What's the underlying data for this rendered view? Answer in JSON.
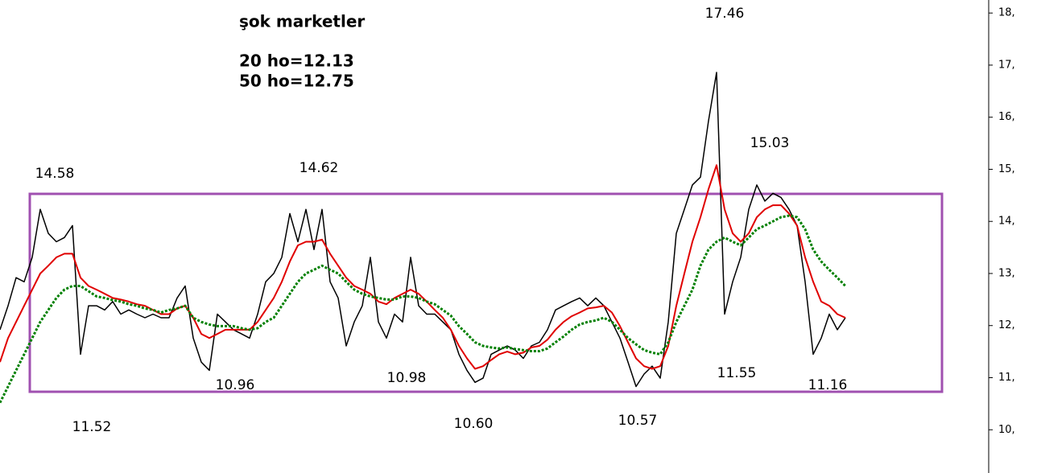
{
  "chart_data": {
    "type": "line",
    "title": "şok marketler",
    "subtitle": [
      "20 ho=12.13",
      "50 ho=12.75"
    ],
    "annotations": [
      "14.58",
      "11.52",
      "10.96",
      "14.62",
      "10.98",
      "10.60",
      "10.57",
      "17.46",
      "11.55",
      "15.03",
      "11.16"
    ],
    "ylim": [
      9.17,
      18.25
    ],
    "yticks": [
      {
        "value": 18,
        "label": "18,"
      },
      {
        "value": 17,
        "label": "17,"
      },
      {
        "value": 16,
        "label": "16,"
      },
      {
        "value": 15,
        "label": "15,"
      },
      {
        "value": 14,
        "label": "14,"
      },
      {
        "value": 13,
        "label": "13,"
      },
      {
        "value": 12,
        "label": "12,"
      },
      {
        "value": 11,
        "label": "11,"
      },
      {
        "value": 10,
        "label": "10,"
      }
    ],
    "grid": false,
    "series": [
      {
        "color": "#000000",
        "values": [
          11.92,
          12.38,
          12.92,
          12.84,
          13.31,
          14.23,
          13.77,
          13.61,
          13.69,
          13.92,
          11.45,
          12.38,
          12.38,
          12.3,
          12.46,
          12.22,
          12.3,
          12.22,
          12.15,
          12.22,
          12.15,
          12.15,
          12.53,
          12.76,
          11.76,
          11.3,
          11.14,
          12.22,
          12.07,
          11.92,
          11.84,
          11.76,
          12.22,
          12.84,
          13.0,
          13.31,
          14.15,
          13.61,
          14.23,
          13.46,
          14.23,
          12.84,
          12.53,
          11.61,
          12.07,
          12.38,
          13.31,
          12.07,
          11.76,
          12.22,
          12.07,
          13.31,
          12.38,
          12.22,
          12.22,
          12.07,
          11.92,
          11.45,
          11.14,
          10.91,
          10.99,
          11.45,
          11.53,
          11.61,
          11.53,
          11.37,
          11.61,
          11.68,
          11.92,
          12.3,
          12.38,
          12.46,
          12.53,
          12.38,
          12.53,
          12.38,
          12.07,
          11.76,
          11.3,
          10.83,
          11.07,
          11.22,
          10.99,
          12.07,
          13.77,
          14.23,
          14.7,
          14.85,
          15.93,
          16.86,
          12.22,
          12.84,
          13.31,
          14.23,
          14.7,
          14.39,
          14.54,
          14.46,
          14.23,
          13.92,
          12.84,
          11.45,
          11.76,
          12.22,
          11.92,
          12.15
        ]
      },
      {
        "color": "#e00000",
        "values": [
          11.3,
          11.76,
          12.07,
          12.38,
          12.69,
          13.0,
          13.15,
          13.31,
          13.38,
          13.38,
          12.92,
          12.76,
          12.69,
          12.61,
          12.53,
          12.5,
          12.46,
          12.41,
          12.38,
          12.3,
          12.22,
          12.22,
          12.33,
          12.38,
          12.15,
          11.84,
          11.76,
          11.84,
          11.92,
          11.92,
          11.92,
          11.92,
          12.07,
          12.3,
          12.53,
          12.84,
          13.23,
          13.54,
          13.61,
          13.61,
          13.65,
          13.38,
          13.15,
          12.92,
          12.76,
          12.69,
          12.61,
          12.46,
          12.41,
          12.53,
          12.61,
          12.69,
          12.61,
          12.46,
          12.3,
          12.15,
          11.92,
          11.61,
          11.37,
          11.17,
          11.22,
          11.34,
          11.45,
          11.5,
          11.45,
          11.48,
          11.58,
          11.61,
          11.73,
          11.92,
          12.07,
          12.18,
          12.25,
          12.33,
          12.35,
          12.38,
          12.25,
          11.99,
          11.68,
          11.37,
          11.22,
          11.17,
          11.22,
          11.61,
          12.38,
          13.0,
          13.61,
          14.08,
          14.62,
          15.08,
          14.23,
          13.77,
          13.61,
          13.77,
          14.08,
          14.23,
          14.31,
          14.31,
          14.15,
          13.92,
          13.31,
          12.84,
          12.46,
          12.38,
          12.22,
          12.15
        ]
      },
      {
        "color": "#008000",
        "values": [
          10.52,
          10.83,
          11.14,
          11.45,
          11.76,
          12.07,
          12.3,
          12.53,
          12.69,
          12.76,
          12.76,
          12.66,
          12.56,
          12.53,
          12.49,
          12.46,
          12.41,
          12.38,
          12.33,
          12.3,
          12.25,
          12.3,
          12.33,
          12.38,
          12.15,
          12.07,
          12.02,
          11.99,
          11.99,
          11.99,
          11.95,
          11.92,
          11.95,
          12.07,
          12.15,
          12.38,
          12.61,
          12.84,
          13.0,
          13.07,
          13.15,
          13.07,
          13.0,
          12.84,
          12.69,
          12.61,
          12.56,
          12.53,
          12.5,
          12.5,
          12.56,
          12.56,
          12.53,
          12.46,
          12.41,
          12.3,
          12.19,
          11.99,
          11.84,
          11.68,
          11.61,
          11.58,
          11.56,
          11.58,
          11.55,
          11.53,
          11.51,
          11.51,
          11.56,
          11.68,
          11.79,
          11.92,
          12.02,
          12.07,
          12.1,
          12.15,
          12.07,
          11.92,
          11.76,
          11.64,
          11.53,
          11.48,
          11.45,
          11.68,
          12.07,
          12.38,
          12.69,
          13.15,
          13.46,
          13.61,
          13.69,
          13.61,
          13.54,
          13.69,
          13.85,
          13.92,
          14.0,
          14.08,
          14.11,
          14.08,
          13.85,
          13.46,
          13.23,
          13.07,
          12.92,
          12.76
        ]
      }
    ]
  }
}
